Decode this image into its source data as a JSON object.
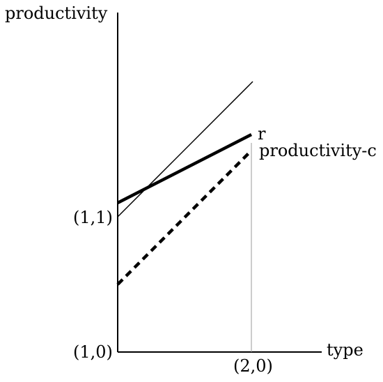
{
  "diagram": {
    "y_axis_label": "productivity",
    "x_axis_label": "type",
    "origin_label": "(1,0)",
    "y_tick_label": "(1,1)",
    "x_tick_label": "(2,0)",
    "line_r_label": "r",
    "line_dashed_label": "productivity-c"
  }
}
